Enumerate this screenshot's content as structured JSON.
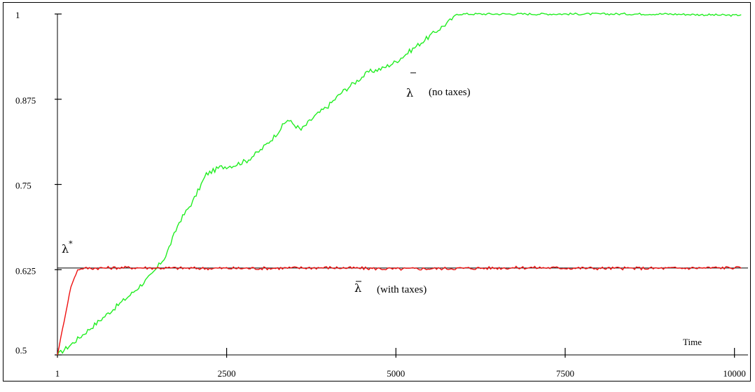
{
  "chart_data": {
    "type": "line",
    "title": "",
    "xlabel": "Time",
    "ylabel": "",
    "xlim": [
      1,
      10200
    ],
    "ylim": [
      0.5,
      1.0
    ],
    "x_ticks": [
      "1",
      "2500",
      "5000",
      "7500",
      "10000"
    ],
    "x_tick_values": [
      1,
      2500,
      5000,
      7500,
      10000
    ],
    "y_ticks": [
      "0.5",
      "0.625",
      "0.75",
      "0.875",
      "1"
    ],
    "y_tick_values": [
      0.5,
      0.625,
      0.75,
      0.875,
      1.0
    ],
    "grid": false,
    "reference_line": {
      "label": "λ*",
      "value": 0.6275,
      "color": "#000000"
    },
    "series": [
      {
        "label": "λ̄",
        "annotation": "(no taxes)",
        "color": "#22ee22",
        "x": [
          1,
          200,
          500,
          800,
          1100,
          1400,
          1600,
          1800,
          2000,
          2200,
          2400,
          2600,
          2800,
          3000,
          3200,
          3400,
          3600,
          3800,
          4000,
          4200,
          4400,
          4600,
          4800,
          5000,
          5200,
          5400,
          5600,
          5800,
          5900,
          6000,
          7000,
          8000,
          9000,
          10000,
          10100
        ],
        "values": [
          0.5,
          0.515,
          0.54,
          0.565,
          0.59,
          0.618,
          0.645,
          0.695,
          0.725,
          0.765,
          0.775,
          0.778,
          0.785,
          0.8,
          0.82,
          0.845,
          0.83,
          0.85,
          0.865,
          0.885,
          0.9,
          0.915,
          0.92,
          0.93,
          0.945,
          0.96,
          0.975,
          0.99,
          1.0,
          1.0,
          1.0,
          1.0,
          1.0,
          0.998,
          0.999
        ]
      },
      {
        "label": "λ̄",
        "annotation": "(with taxes)",
        "color": "#ee1111",
        "x": [
          1,
          100,
          200,
          300,
          400,
          1000,
          2000,
          3000,
          4000,
          5000,
          6000,
          7000,
          8000,
          9000,
          10000,
          10100
        ],
        "values": [
          0.5,
          0.55,
          0.6,
          0.625,
          0.627,
          0.628,
          0.627,
          0.627,
          0.628,
          0.626,
          0.627,
          0.628,
          0.627,
          0.627,
          0.628,
          0.627
        ]
      }
    ],
    "annotations": {
      "ref_label": "λ",
      "ref_sup": "*",
      "bar_symbol": "λ",
      "no_taxes_text": "(no taxes)",
      "with_taxes_text": "(with taxes)"
    },
    "annotation_ranges": [
      {
        "series_index": 0,
        "label_ref": "no_taxes_text"
      },
      {
        "series_index": 1,
        "label_ref": "with_taxes_text"
      }
    ]
  }
}
